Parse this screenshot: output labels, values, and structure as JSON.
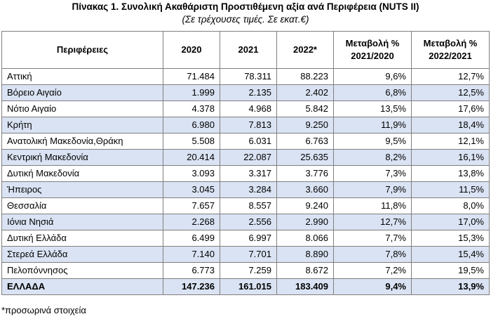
{
  "title": "Πίνακας 1. Συνολική Ακαθάριστη Προστιθέμενη αξία ανά  Περιφέρεια (NUTS II)",
  "subtitle": "(Σε τρέχουσες τιμές. Σε εκατ.€)",
  "table": {
    "headers": [
      "Περιφέρειες",
      "2020",
      "2021",
      "2022*",
      "Μεταβολή % 2021/2020",
      "Μεταβολή % 2022/2021"
    ],
    "rows": [
      [
        "Αττική",
        "71.484",
        "78.311",
        "88.223",
        "9,6%",
        "12,7%"
      ],
      [
        "Βόρειο Αιγαίο",
        "1.999",
        "2.135",
        "2.402",
        "6,8%",
        "12,5%"
      ],
      [
        "Νότιο Αιγαίο",
        "4.378",
        "4.968",
        "5.842",
        "13,5%",
        "17,6%"
      ],
      [
        "Κρήτη",
        "6.980",
        "7.813",
        "9.250",
        "11,9%",
        "18,4%"
      ],
      [
        "Ανατολική Μακεδονία,Θράκη",
        "5.508",
        "6.031",
        "6.763",
        "9,5%",
        "12,1%"
      ],
      [
        "Κεντρική Μακεδονία",
        "20.414",
        "22.087",
        "25.635",
        "8,2%",
        "16,1%"
      ],
      [
        "Δυτική Μακεδονία",
        "3.093",
        "3.317",
        "3.776",
        "7,3%",
        "13,8%"
      ],
      [
        "Ήπειρος",
        "3.045",
        "3.284",
        "3.660",
        "7,9%",
        "11,5%"
      ],
      [
        "Θεσσαλία",
        "7.657",
        "8.557",
        "9.240",
        "11,8%",
        "8,0%"
      ],
      [
        "Ιόνια Νησιά",
        "2.268",
        "2.556",
        "2.990",
        "12,7%",
        "17,0%"
      ],
      [
        "Δυτική Ελλάδα",
        "6.499",
        "6.997",
        "8.066",
        "7,7%",
        "15,3%"
      ],
      [
        "Στερεά Ελλάδα",
        "7.140",
        "7.701",
        "8.890",
        "7,8%",
        "15,4%"
      ],
      [
        "Πελοπόννησος",
        "6.773",
        "7.259",
        "8.672",
        "7,2%",
        "19,5%"
      ]
    ],
    "total": [
      "ΕΛΛΑΔΑ",
      "147.236",
      "161.015",
      "183.409",
      "9,4%",
      "13,9%"
    ]
  },
  "footnote": "*προσωρινά στοιχεία",
  "colors": {
    "shade": "#dae3f3",
    "border": "#7f7f7f"
  }
}
